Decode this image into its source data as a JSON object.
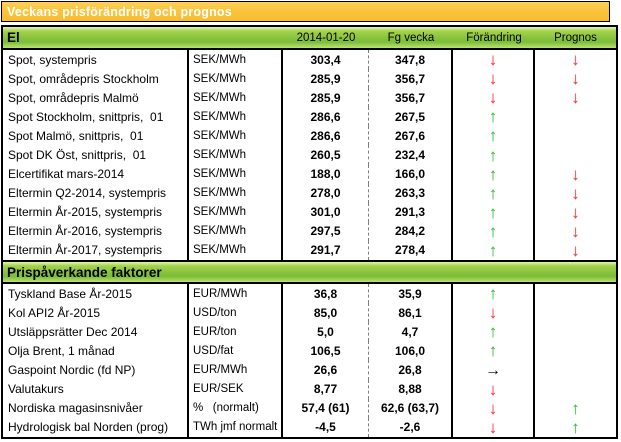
{
  "title_bar": {
    "title": "Veckans prisförändring och prognos"
  },
  "table": {
    "column_headers": [
      "2014-01-20",
      "Fg vecka",
      "Förändring",
      "Prognos"
    ],
    "sections": [
      {
        "title": "El",
        "rows": [
          {
            "label": "Spot, systempris",
            "unit": "SEK/MWh",
            "current": "303,4",
            "previous": "347,8",
            "change": "down-red",
            "forecast": "down-red"
          },
          {
            "label": "Spot, områdepris Stockholm",
            "unit": "SEK/MWh",
            "current": "285,9",
            "previous": "356,7",
            "change": "down-red",
            "forecast": "down-red"
          },
          {
            "label": "Spot, områdepris Malmö",
            "unit": "SEK/MWh",
            "current": "285,9",
            "previous": "356,7",
            "change": "down-red",
            "forecast": "down-red"
          },
          {
            "label": "Spot Stockholm, snittpris,  01",
            "unit": "SEK/MWh",
            "current": "286,6",
            "previous": "267,5",
            "change": "up-green",
            "forecast": "none"
          },
          {
            "label": "Spot Malmö, snittpris,  01",
            "unit": "SEK/MWh",
            "current": "286,6",
            "previous": "267,6",
            "change": "up-green",
            "forecast": "none"
          },
          {
            "label": "Spot DK Öst, snittpris,  01",
            "unit": "SEK/MWh",
            "current": "260,5",
            "previous": "232,4",
            "change": "up-green",
            "forecast": "none"
          },
          {
            "label": "Elcertifikat mars-2014",
            "unit": "SEK/MWh",
            "current": "188,0",
            "previous": "166,0",
            "change": "up-green",
            "forecast": "down-red"
          },
          {
            "label": "Eltermin Q2-2014, systempris",
            "unit": "SEK/MWh",
            "current": "278,0",
            "previous": "263,3",
            "change": "up-green",
            "forecast": "down-red"
          },
          {
            "label": "Eltermin År-2015, systempris",
            "unit": "SEK/MWh",
            "current": "301,0",
            "previous": "291,3",
            "change": "up-green",
            "forecast": "down-red"
          },
          {
            "label": "Eltermin År-2016, systempris",
            "unit": "SEK/MWh",
            "current": "297,5",
            "previous": "284,2",
            "change": "up-green",
            "forecast": "down-red"
          },
          {
            "label": "Eltermin År-2017, systempris",
            "unit": "SEK/MWh",
            "current": "291,7",
            "previous": "278,4",
            "change": "up-green",
            "forecast": "down-red"
          }
        ]
      },
      {
        "title": "Prispåverkande faktorer",
        "rows": [
          {
            "label": "Tyskland Base År-2015",
            "unit": "EUR/MWh",
            "current": "36,8",
            "previous": "35,9",
            "change": "up-green",
            "forecast": "none"
          },
          {
            "label": "Kol API2 År-2015",
            "unit": "USD/ton",
            "current": "85,0",
            "previous": "86,1",
            "change": "down-red",
            "forecast": "none"
          },
          {
            "label": "Utsläppsrätter Dec 2014",
            "unit": "EUR/ton",
            "current": "5,0",
            "previous": "4,7",
            "change": "up-green",
            "forecast": "none"
          },
          {
            "label": "Olja Brent, 1 månad",
            "unit": "USD/fat",
            "current": "106,5",
            "previous": "106,0",
            "change": "up-green",
            "forecast": "none"
          },
          {
            "label": "Gaspoint Nordic (fd NP)",
            "unit": "EUR/MWh",
            "current": "26,6",
            "previous": "26,8",
            "change": "right-black",
            "forecast": "none"
          },
          {
            "label": "Valutakurs",
            "unit": "EUR/SEK",
            "current": "8,77",
            "previous": "8,88",
            "change": "down-red",
            "forecast": "none"
          },
          {
            "label": "Nordiska magasinsnivåer",
            "unit": "%   (normalt)",
            "current": "57,4 (61)",
            "previous": "62,6 (63,7)",
            "change": "down-red",
            "forecast": "up-green"
          },
          {
            "label": "Hydrologisk bal Norden (prog)",
            "unit": "TWh jmf normalt",
            "current": "-4,5",
            "previous": "-2,6",
            "change": "down-red",
            "forecast": "up-green"
          }
        ]
      }
    ]
  },
  "colors": {
    "title_bar_bg": "#fbc43c",
    "section_bar_green": "#8ac43e",
    "arrow_down_red": "#f94040",
    "arrow_up_green": "#3dbe3d",
    "arrow_flat_black": "#000000",
    "value_divider_gray": "#808080"
  }
}
